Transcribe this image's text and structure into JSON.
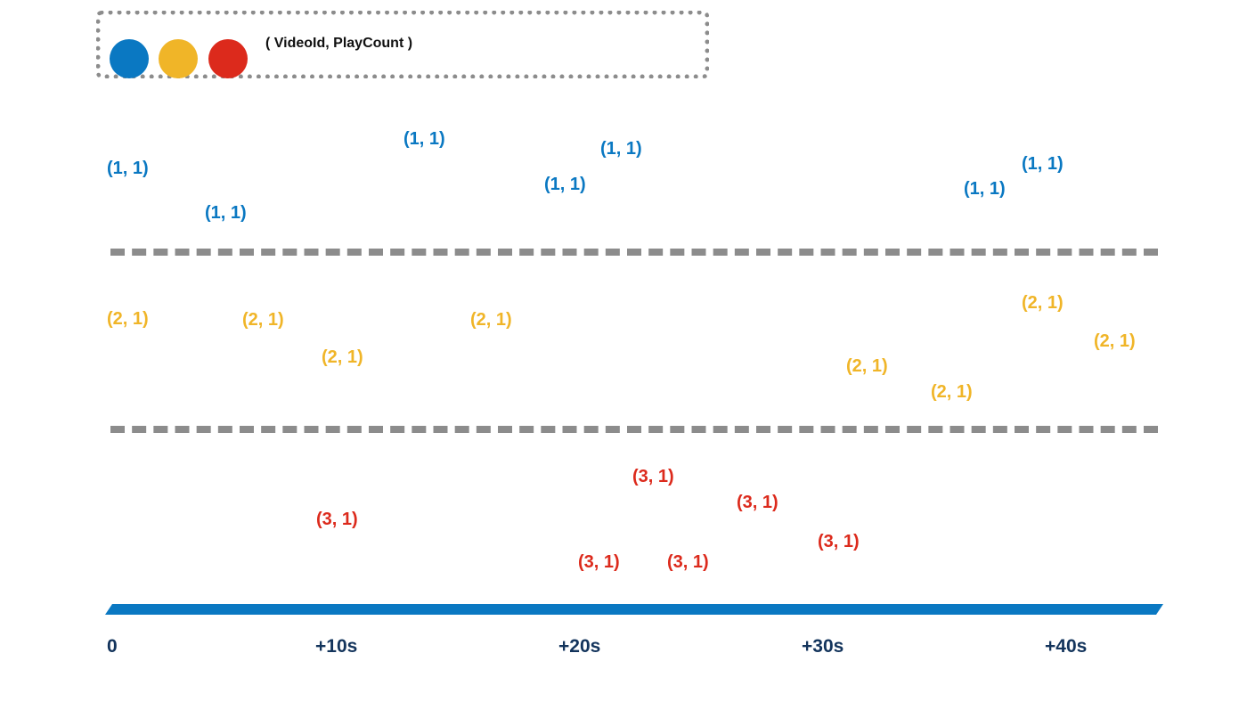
{
  "legend": {
    "colors": [
      "#0a78c2",
      "#f0b528",
      "#dc2a1c"
    ],
    "label": "( VideoId, PlayCount )"
  },
  "timeline": {
    "bar_color": "#0a78c2",
    "ticks": [
      "0",
      "+10s",
      "+20s",
      "+30s",
      "+40s"
    ]
  },
  "lanes": [
    {
      "video_id": 1,
      "color": "#0a78c2",
      "events": [
        "(1, 1)",
        "(1, 1)",
        "(1, 1)",
        "(1, 1)",
        "(1, 1)",
        "(1, 1)",
        "(1, 1)"
      ]
    },
    {
      "video_id": 2,
      "color": "#f0b528",
      "events": [
        "(2, 1)",
        "(2, 1)",
        "(2, 1)",
        "(2, 1)",
        "(2, 1)",
        "(2, 1)",
        "(2, 1)",
        "(2, 1)"
      ]
    },
    {
      "video_id": 3,
      "color": "#dc2a1c",
      "events": [
        "(3, 1)",
        "(3, 1)",
        "(3, 1)",
        "(3, 1)",
        "(3, 1)",
        "(3, 1)"
      ]
    }
  ]
}
